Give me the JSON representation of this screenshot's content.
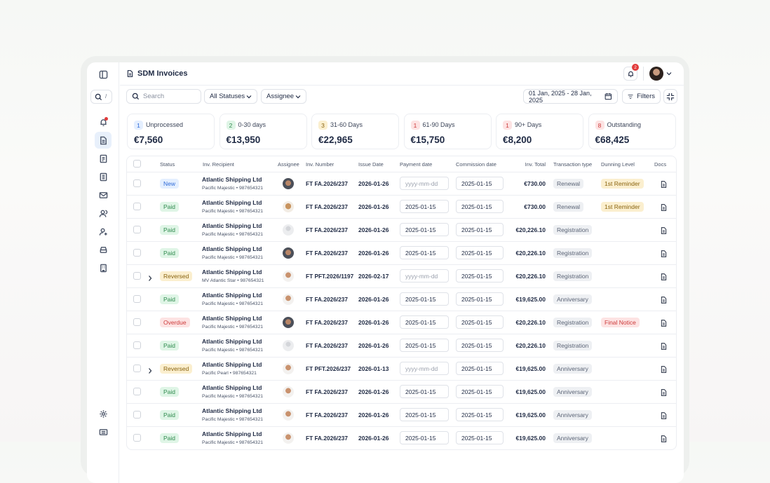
{
  "header": {
    "title": "SDM Invoices",
    "notification_count": "2"
  },
  "search": {
    "placeholder": "Search",
    "shortcut": "/"
  },
  "toolbar": {
    "status_filter": "All Statuses",
    "assignee_filter": "Assignee",
    "date_range": "01 Jan, 2025 - 28 Jan, 2025",
    "filters": "Filters"
  },
  "cards": [
    {
      "count": "1",
      "label": "Unprocessed",
      "amount": "€7,560",
      "tone": "blue"
    },
    {
      "count": "2",
      "label": "0-30 days",
      "amount": "€13,950",
      "tone": "green"
    },
    {
      "count": "3",
      "label": "31-60 Days",
      "amount": "€22,965",
      "tone": "yellow"
    },
    {
      "count": "1",
      "label": "61-90 Days",
      "amount": "€15,750",
      "tone": "red"
    },
    {
      "count": "1",
      "label": "90+ Days",
      "amount": "€8,200",
      "tone": "red"
    },
    {
      "count": "8",
      "label": "Outstanding",
      "amount": "€68,425",
      "tone": "red"
    }
  ],
  "table": {
    "columns": [
      "Status",
      "Inv. Recipient",
      "Assignee",
      "Inv. Number",
      "Issue Date",
      "Payment date",
      "Commission date",
      "Inv. Total",
      "Transaction type",
      "Dunning Level",
      "Docs"
    ],
    "rows": [
      {
        "status": "New",
        "status_tone": "blue",
        "recipient": "Atlantic Shipping Ltd",
        "vessel": "Pacific Majestic • 987654321",
        "avatar": "dark",
        "number": "FT FA.2026/237",
        "issue_date": "2026-01-26",
        "payment_date": "yyyy-mm-dd",
        "payment_empty": true,
        "commission_date": "2025-01-15",
        "total": "€730.00",
        "transaction": "Renewal",
        "dunning": "1st Reminder",
        "dunning_tone": "yellow"
      },
      {
        "status": "Paid",
        "status_tone": "green",
        "recipient": "Atlantic Shipping Ltd",
        "vessel": "Pacific Majestic • 987654321",
        "avatar": "tan",
        "number": "FT FA.2026/237",
        "issue_date": "2026-01-26",
        "payment_date": "2025-01-15",
        "commission_date": "2025-01-15",
        "total": "€730.00",
        "transaction": "Renewal",
        "dunning": "1st Reminder",
        "dunning_tone": "yellow"
      },
      {
        "status": "Paid",
        "status_tone": "green",
        "recipient": "Atlantic Shipping Ltd",
        "vessel": "Pacific Majestic • 987654321",
        "avatar": "empty",
        "number": "FT FA.2026/237",
        "issue_date": "2026-01-26",
        "payment_date": "2025-01-15",
        "commission_date": "2025-01-15",
        "total": "€20,226.10",
        "transaction": "Registration"
      },
      {
        "status": "Paid",
        "status_tone": "green",
        "recipient": "Atlantic Shipping Ltd",
        "vessel": "Pacific Majestic • 987654321",
        "avatar": "dark",
        "number": "FT FA.2026/237",
        "issue_date": "2026-01-26",
        "payment_date": "2025-01-15",
        "commission_date": "2025-01-15",
        "total": "€20,226.10",
        "transaction": "Registration"
      },
      {
        "status": "Reversed",
        "status_tone": "yellow",
        "expandable": true,
        "recipient": "Atlantic Shipping Ltd",
        "vessel": "MV Atlantic Star • 987654321",
        "avatar": "light",
        "number": "FT PFT.2026/1197",
        "issue_date": "2026-02-17",
        "payment_date": "yyyy-mm-dd",
        "payment_empty": true,
        "commission_date": "2025-01-15",
        "total": "€20,226.10",
        "transaction": "Registration"
      },
      {
        "status": "Paid",
        "status_tone": "green",
        "recipient": "Atlantic Shipping Ltd",
        "vessel": "Pacific Majestic • 987654321",
        "avatar": "light",
        "number": "FT FA.2026/237",
        "issue_date": "2026-01-26",
        "payment_date": "2025-01-15",
        "commission_date": "2025-01-15",
        "total": "€19,625.00",
        "transaction": "Anniversary"
      },
      {
        "status": "Overdue",
        "status_tone": "red",
        "recipient": "Atlantic Shipping Ltd",
        "vessel": "Pacific Majestic • 987654321",
        "avatar": "dark",
        "number": "FT FA.2026/237",
        "issue_date": "2026-01-26",
        "payment_date": "2025-01-15",
        "commission_date": "2025-01-15",
        "total": "€20,226.10",
        "transaction": "Registration",
        "dunning": "Final Notice",
        "dunning_tone": "red"
      },
      {
        "status": "Paid",
        "status_tone": "green",
        "recipient": "Atlantic Shipping Ltd",
        "vessel": "Pacific Majestic • 987654321",
        "avatar": "empty",
        "number": "FT FA.2026/237",
        "issue_date": "2026-01-26",
        "payment_date": "2025-01-15",
        "commission_date": "2025-01-15",
        "total": "€20,226.10",
        "transaction": "Registration"
      },
      {
        "status": "Reversed",
        "status_tone": "yellow",
        "expandable": true,
        "recipient": "Atlantic Shipping Ltd",
        "vessel": "Pacific Pearl • 987654321",
        "avatar": "light",
        "number": "FT PFT.2026/237",
        "issue_date": "2026-01-13",
        "payment_date": "yyyy-mm-dd",
        "payment_empty": true,
        "commission_date": "2025-01-15",
        "total": "€19,625.00",
        "transaction": "Anniversary"
      },
      {
        "status": "Paid",
        "status_tone": "green",
        "recipient": "Atlantic Shipping Ltd",
        "vessel": "Pacific Majestic • 987654321",
        "avatar": "light",
        "number": "FT FA.2026/237",
        "issue_date": "2026-01-26",
        "payment_date": "2025-01-15",
        "commission_date": "2025-01-15",
        "total": "€19,625.00",
        "transaction": "Anniversary"
      },
      {
        "status": "Paid",
        "status_tone": "green",
        "recipient": "Atlantic Shipping Ltd",
        "vessel": "Pacific Majestic • 987654321",
        "avatar": "light",
        "number": "FT FA.2026/237",
        "issue_date": "2026-01-26",
        "payment_date": "2025-01-15",
        "commission_date": "2025-01-15",
        "total": "€19,625.00",
        "transaction": "Anniversary"
      },
      {
        "status": "Paid",
        "status_tone": "green",
        "recipient": "Atlantic Shipping Ltd",
        "vessel": "Pacific Majestic • 987654321",
        "avatar": "light",
        "number": "FT FA.2026/237",
        "issue_date": "2026-01-26",
        "payment_date": "2025-01-15",
        "commission_date": "2025-01-15",
        "total": "€19,625.00",
        "transaction": "Anniversary"
      }
    ]
  }
}
